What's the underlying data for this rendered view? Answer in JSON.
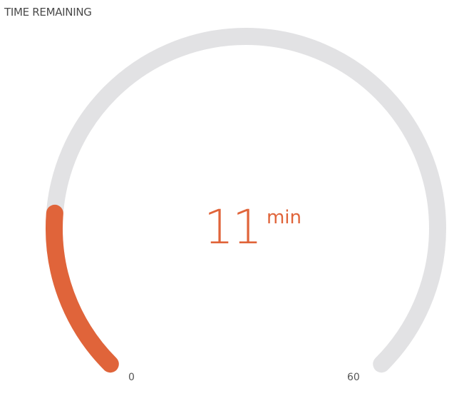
{
  "widget": {
    "title": "TIME REMAINING",
    "value": "11",
    "unit": "min",
    "min_label": "0",
    "max_label": "60",
    "min": 0,
    "max": 60,
    "current": 11
  },
  "colors": {
    "fill": "#e0643a",
    "track": "#e2e2e4",
    "text": "#4a4a4a"
  }
}
